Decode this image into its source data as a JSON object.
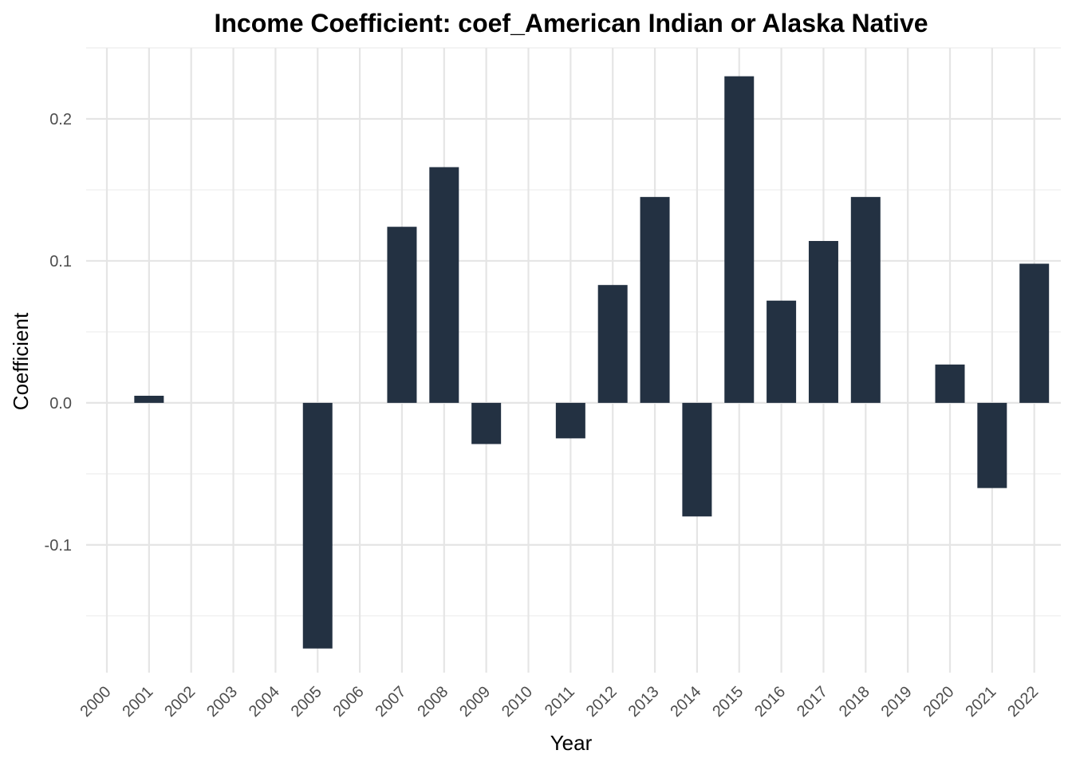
{
  "chart_data": {
    "type": "bar",
    "title": "Income Coefficient: coef_American Indian or Alaska Native",
    "xlabel": "Year",
    "ylabel": "Coefficient",
    "categories": [
      "2000",
      "2001",
      "2002",
      "2003",
      "2004",
      "2005",
      "2006",
      "2007",
      "2008",
      "2009",
      "2010",
      "2011",
      "2012",
      "2013",
      "2014",
      "2015",
      "2016",
      "2017",
      "2018",
      "2019",
      "2020",
      "2021",
      "2022"
    ],
    "values": [
      null,
      0.005,
      null,
      null,
      null,
      -0.173,
      null,
      0.124,
      0.166,
      -0.029,
      null,
      -0.025,
      0.083,
      0.145,
      -0.08,
      0.23,
      0.072,
      0.114,
      0.145,
      null,
      0.027,
      -0.06,
      0.098
    ],
    "ylim": [
      -0.19,
      0.25
    ],
    "y_ticks": [
      -0.1,
      0.0,
      0.1,
      0.2
    ],
    "y_tick_labels": [
      "-0.1",
      "0.0",
      "0.1",
      "0.2"
    ],
    "grid": true,
    "legend": "none",
    "bar_color": "#233142"
  }
}
